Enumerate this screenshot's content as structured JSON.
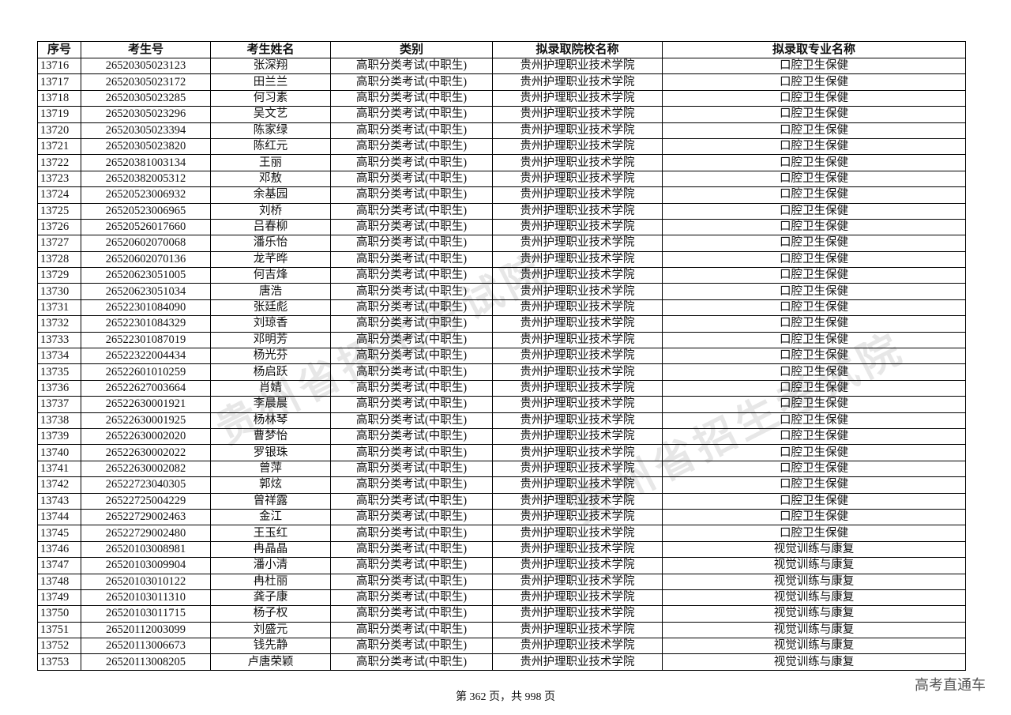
{
  "table": {
    "headers": [
      "序号",
      "考生号",
      "考生姓名",
      "类别",
      "拟录取院校名称",
      "拟录取专业名称"
    ],
    "rows": [
      [
        "13716",
        "26520305023123",
        "张深翔",
        "高职分类考试(中职生)",
        "贵州护理职业技术学院",
        "口腔卫生保健"
      ],
      [
        "13717",
        "26520305023172",
        "田兰兰",
        "高职分类考试(中职生)",
        "贵州护理职业技术学院",
        "口腔卫生保健"
      ],
      [
        "13718",
        "26520305023285",
        "何习素",
        "高职分类考试(中职生)",
        "贵州护理职业技术学院",
        "口腔卫生保健"
      ],
      [
        "13719",
        "26520305023296",
        "吴文艺",
        "高职分类考试(中职生)",
        "贵州护理职业技术学院",
        "口腔卫生保健"
      ],
      [
        "13720",
        "26520305023394",
        "陈家绿",
        "高职分类考试(中职生)",
        "贵州护理职业技术学院",
        "口腔卫生保健"
      ],
      [
        "13721",
        "26520305023820",
        "陈红元",
        "高职分类考试(中职生)",
        "贵州护理职业技术学院",
        "口腔卫生保健"
      ],
      [
        "13722",
        "26520381003134",
        "王丽",
        "高职分类考试(中职生)",
        "贵州护理职业技术学院",
        "口腔卫生保健"
      ],
      [
        "13723",
        "26520382005312",
        "邓敖",
        "高职分类考试(中职生)",
        "贵州护理职业技术学院",
        "口腔卫生保健"
      ],
      [
        "13724",
        "26520523006932",
        "余基园",
        "高职分类考试(中职生)",
        "贵州护理职业技术学院",
        "口腔卫生保健"
      ],
      [
        "13725",
        "26520523006965",
        "刘桥",
        "高职分类考试(中职生)",
        "贵州护理职业技术学院",
        "口腔卫生保健"
      ],
      [
        "13726",
        "26520526017660",
        "吕春柳",
        "高职分类考试(中职生)",
        "贵州护理职业技术学院",
        "口腔卫生保健"
      ],
      [
        "13727",
        "26520602070068",
        "潘乐怡",
        "高职分类考试(中职生)",
        "贵州护理职业技术学院",
        "口腔卫生保健"
      ],
      [
        "13728",
        "26520602070136",
        "龙芊晔",
        "高职分类考试(中职生)",
        "贵州护理职业技术学院",
        "口腔卫生保健"
      ],
      [
        "13729",
        "26520623051005",
        "何吉烽",
        "高职分类考试(中职生)",
        "贵州护理职业技术学院",
        "口腔卫生保健"
      ],
      [
        "13730",
        "26520623051034",
        "唐浩",
        "高职分类考试(中职生)",
        "贵州护理职业技术学院",
        "口腔卫生保健"
      ],
      [
        "13731",
        "26522301084090",
        "张廷彪",
        "高职分类考试(中职生)",
        "贵州护理职业技术学院",
        "口腔卫生保健"
      ],
      [
        "13732",
        "26522301084329",
        "刘琼香",
        "高职分类考试(中职生)",
        "贵州护理职业技术学院",
        "口腔卫生保健"
      ],
      [
        "13733",
        "26522301087019",
        "邓明芳",
        "高职分类考试(中职生)",
        "贵州护理职业技术学院",
        "口腔卫生保健"
      ],
      [
        "13734",
        "26522322004434",
        "杨光芬",
        "高职分类考试(中职生)",
        "贵州护理职业技术学院",
        "口腔卫生保健"
      ],
      [
        "13735",
        "26522601010259",
        "杨启跃",
        "高职分类考试(中职生)",
        "贵州护理职业技术学院",
        "口腔卫生保健"
      ],
      [
        "13736",
        "26522627003664",
        "肖婧",
        "高职分类考试(中职生)",
        "贵州护理职业技术学院",
        "口腔卫生保健"
      ],
      [
        "13737",
        "26522630001921",
        "李晨晨",
        "高职分类考试(中职生)",
        "贵州护理职业技术学院",
        "口腔卫生保健"
      ],
      [
        "13738",
        "26522630001925",
        "杨林琴",
        "高职分类考试(中职生)",
        "贵州护理职业技术学院",
        "口腔卫生保健"
      ],
      [
        "13739",
        "26522630002020",
        "曹梦怡",
        "高职分类考试(中职生)",
        "贵州护理职业技术学院",
        "口腔卫生保健"
      ],
      [
        "13740",
        "26522630002022",
        "罗银珠",
        "高职分类考试(中职生)",
        "贵州护理职业技术学院",
        "口腔卫生保健"
      ],
      [
        "13741",
        "26522630002082",
        "曾萍",
        "高职分类考试(中职生)",
        "贵州护理职业技术学院",
        "口腔卫生保健"
      ],
      [
        "13742",
        "26522723040305",
        "郭炫",
        "高职分类考试(中职生)",
        "贵州护理职业技术学院",
        "口腔卫生保健"
      ],
      [
        "13743",
        "26522725004229",
        "曾祥露",
        "高职分类考试(中职生)",
        "贵州护理职业技术学院",
        "口腔卫生保健"
      ],
      [
        "13744",
        "26522729002463",
        "金江",
        "高职分类考试(中职生)",
        "贵州护理职业技术学院",
        "口腔卫生保健"
      ],
      [
        "13745",
        "26522729002480",
        "王玉红",
        "高职分类考试(中职生)",
        "贵州护理职业技术学院",
        "口腔卫生保健"
      ],
      [
        "13746",
        "26520103008981",
        "冉晶晶",
        "高职分类考试(中职生)",
        "贵州护理职业技术学院",
        "视觉训练与康复"
      ],
      [
        "13747",
        "26520103009904",
        "潘小清",
        "高职分类考试(中职生)",
        "贵州护理职业技术学院",
        "视觉训练与康复"
      ],
      [
        "13748",
        "26520103010122",
        "冉杜丽",
        "高职分类考试(中职生)",
        "贵州护理职业技术学院",
        "视觉训练与康复"
      ],
      [
        "13749",
        "26520103011310",
        "龚子康",
        "高职分类考试(中职生)",
        "贵州护理职业技术学院",
        "视觉训练与康复"
      ],
      [
        "13750",
        "26520103011715",
        "杨子权",
        "高职分类考试(中职生)",
        "贵州护理职业技术学院",
        "视觉训练与康复"
      ],
      [
        "13751",
        "26520112003099",
        "刘盛元",
        "高职分类考试(中职生)",
        "贵州护理职业技术学院",
        "视觉训练与康复"
      ],
      [
        "13752",
        "26520113006673",
        "钱先静",
        "高职分类考试(中职生)",
        "贵州护理职业技术学院",
        "视觉训练与康复"
      ],
      [
        "13753",
        "26520113008205",
        "卢唐荣颖",
        "高职分类考试(中职生)",
        "贵州护理职业技术学院",
        "视觉训练与康复"
      ]
    ]
  },
  "footer": {
    "page_text": "第 362 页，共 998 页"
  },
  "watermark": {
    "text": "贵州省招生考试院",
    "brand": "高考直通车"
  }
}
